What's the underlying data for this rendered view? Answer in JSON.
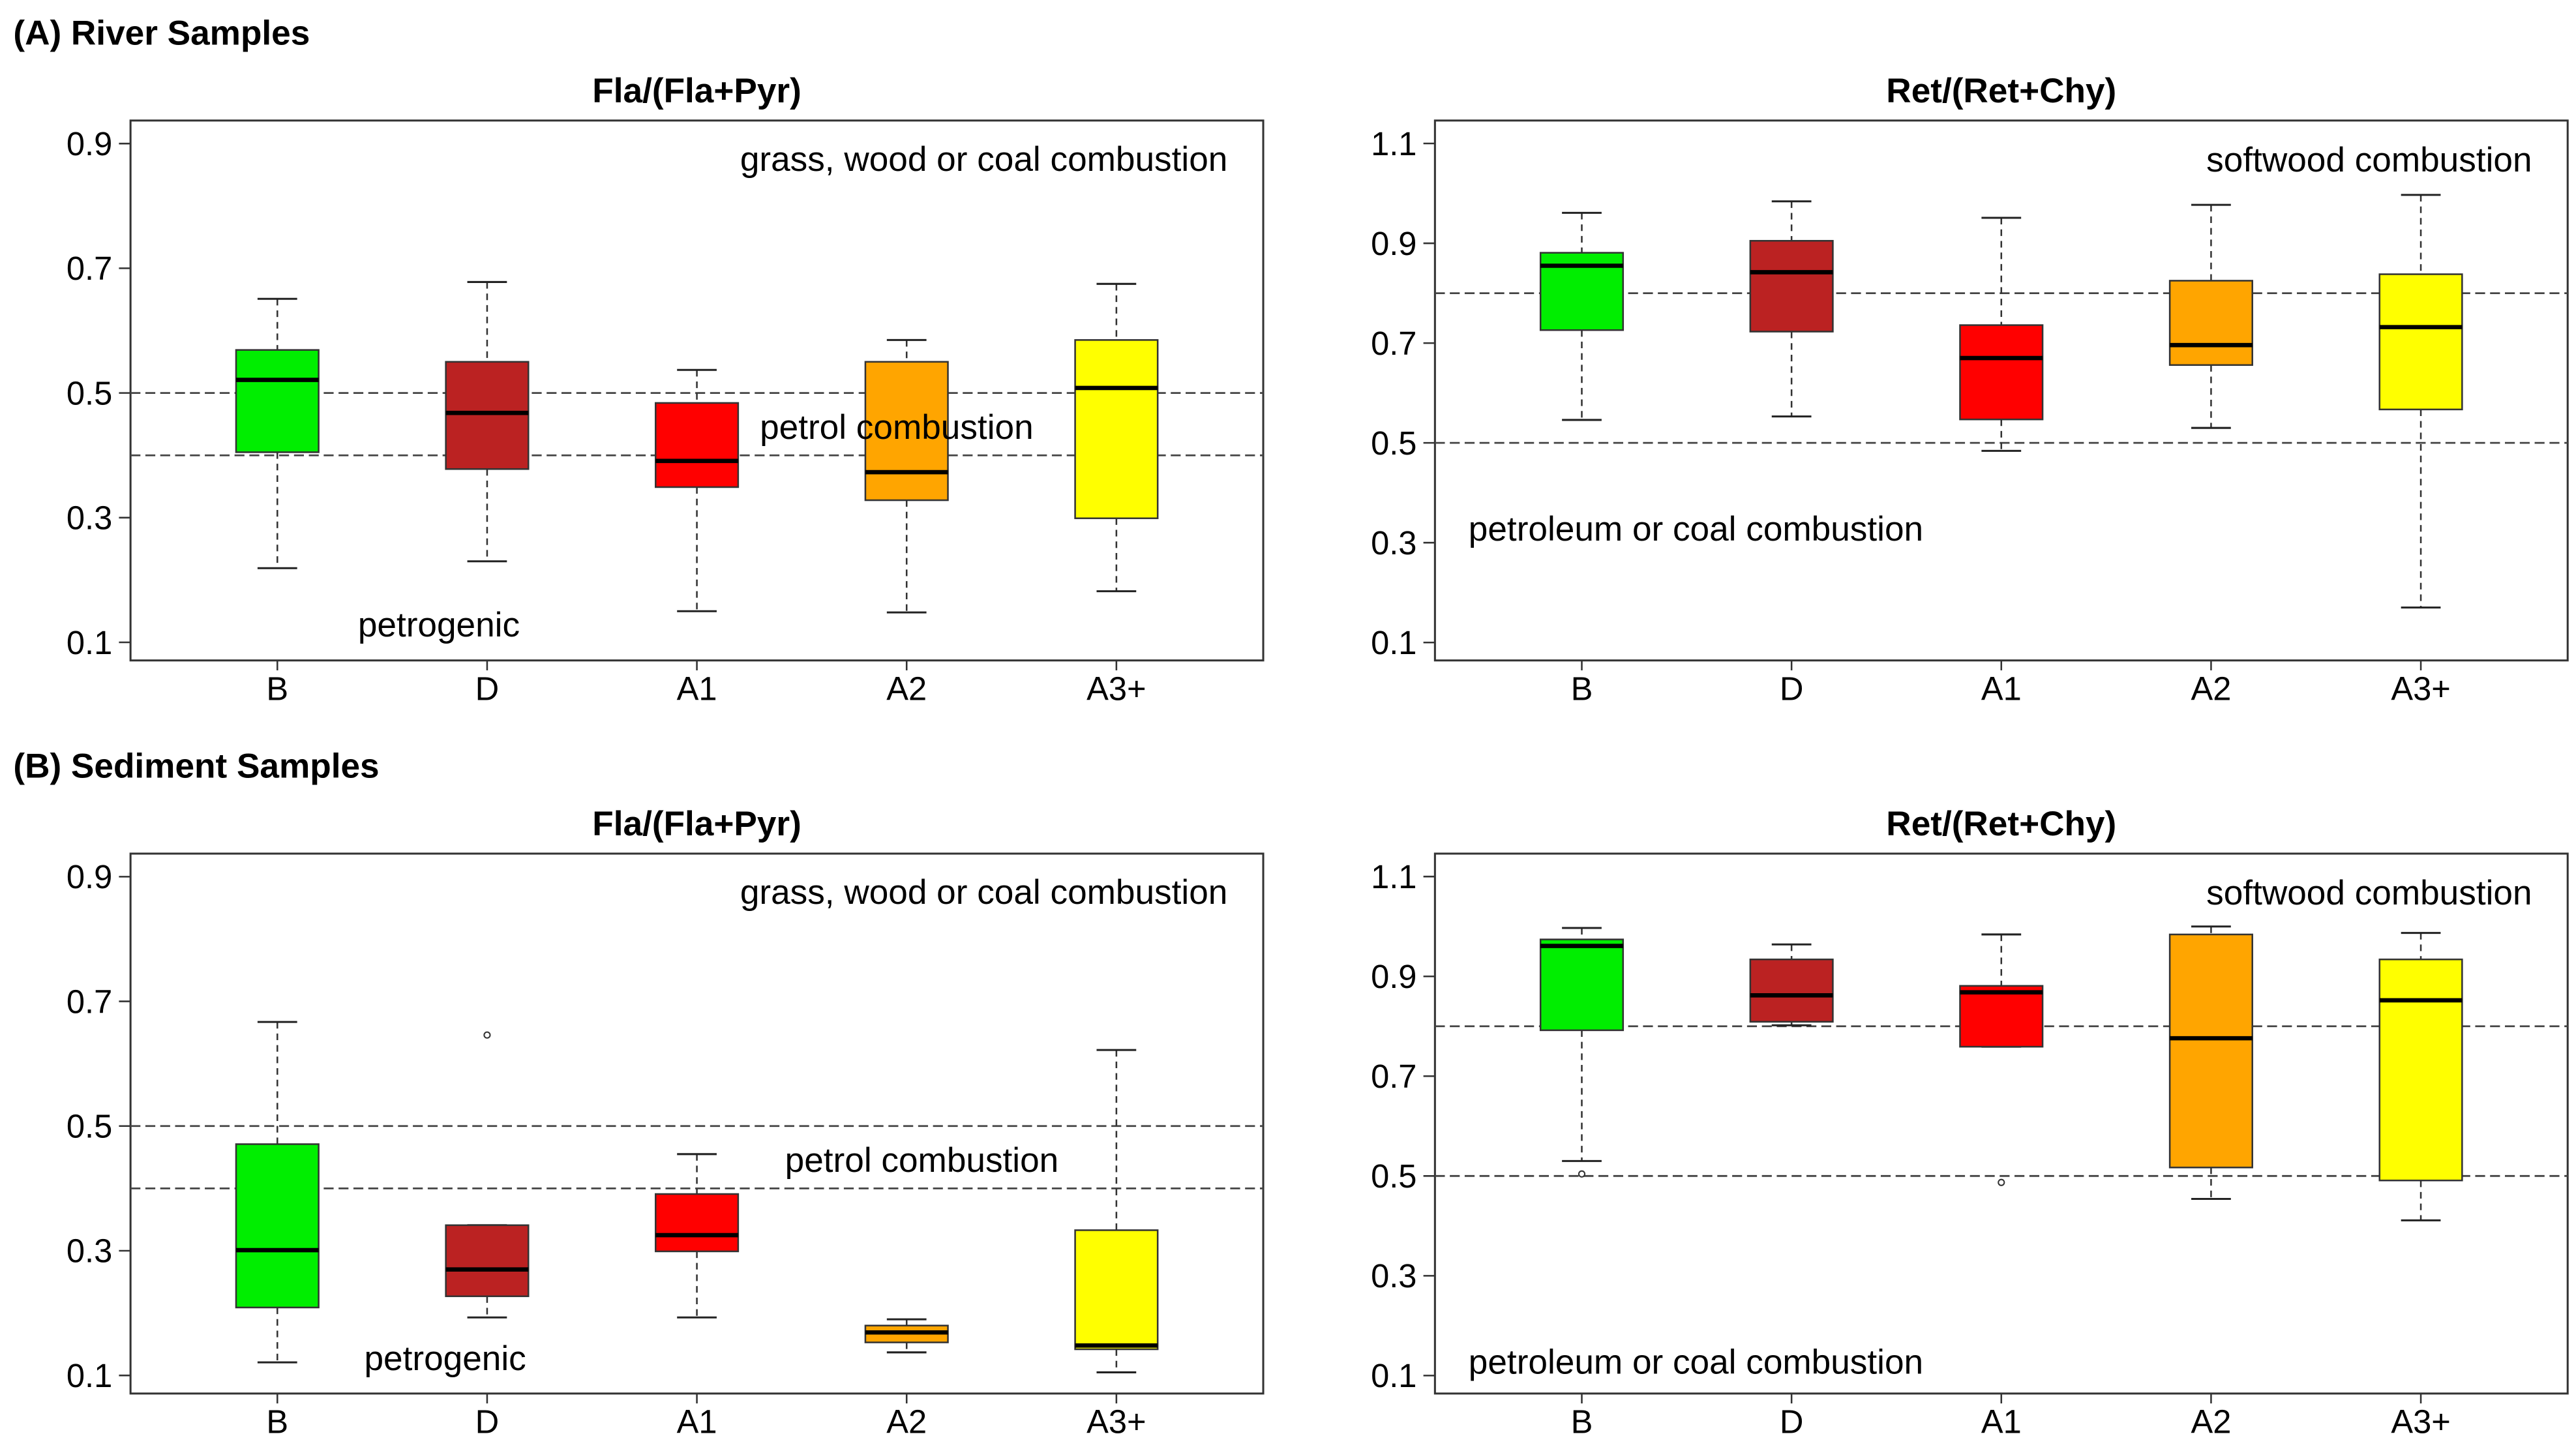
{
  "sections": [
    "(A) River Samples",
    "(B) Sediment Samples"
  ],
  "chart_data": [
    {
      "type": "boxplot",
      "section": 0,
      "column": 0,
      "title": "Fla/(Fla+Pyr)",
      "categories": [
        "B",
        "D",
        "A1",
        "A2",
        "A3+"
      ],
      "yticks": [
        "0.1",
        "0.3",
        "0.5",
        "0.7",
        "0.9"
      ],
      "ylim": [
        0.071,
        0.937
      ],
      "xlim": [
        0.3,
        5.7
      ],
      "reference_lines": [
        0.5,
        0.4
      ],
      "colors": [
        "#00ee00",
        "#bb2222",
        "#ff0000",
        "#ffa500",
        "#ffff00"
      ],
      "boxes": [
        {
          "low": 0.219,
          "q1": 0.405,
          "median": 0.521,
          "q3": 0.569,
          "high": 0.651,
          "outliers": []
        },
        {
          "low": 0.23,
          "q1": 0.378,
          "median": 0.468,
          "q3": 0.55,
          "high": 0.678,
          "outliers": []
        },
        {
          "low": 0.15,
          "q1": 0.349,
          "median": 0.391,
          "q3": 0.484,
          "high": 0.537,
          "outliers": []
        },
        {
          "low": 0.148,
          "q1": 0.328,
          "median": 0.373,
          "q3": 0.55,
          "high": 0.585,
          "outliers": []
        },
        {
          "low": 0.182,
          "q1": 0.299,
          "median": 0.508,
          "q3": 0.585,
          "high": 0.675,
          "outliers": []
        }
      ],
      "annotations": [
        {
          "text": "grass, wood or coal combustion",
          "x": 5.53,
          "y": 0.875,
          "anchor": "end"
        },
        {
          "text": "petrol combustion",
          "x": 3.3,
          "y": 0.445,
          "anchor": "start"
        },
        {
          "text": "petrogenic",
          "x": 1.77,
          "y": 0.128,
          "anchor": "middle"
        }
      ]
    },
    {
      "type": "boxplot",
      "section": 0,
      "column": 1,
      "title": "Ret/(Ret+Chy)",
      "categories": [
        "B",
        "D",
        "A1",
        "A2",
        "A3+"
      ],
      "yticks": [
        "0.1",
        "0.3",
        "0.5",
        "0.7",
        "0.9",
        "1.1"
      ],
      "ylim": [
        0.064,
        1.146
      ],
      "xlim": [
        0.3,
        5.7
      ],
      "reference_lines": [
        0.8,
        0.5
      ],
      "colors": [
        "#00ee00",
        "#bb2222",
        "#ff0000",
        "#ffa500",
        "#ffff00"
      ],
      "boxes": [
        {
          "low": 0.546,
          "q1": 0.726,
          "median": 0.855,
          "q3": 0.881,
          "high": 0.961,
          "outliers": []
        },
        {
          "low": 0.553,
          "q1": 0.723,
          "median": 0.842,
          "q3": 0.905,
          "high": 0.984,
          "outliers": []
        },
        {
          "low": 0.484,
          "q1": 0.547,
          "median": 0.67,
          "q3": 0.736,
          "high": 0.951,
          "outliers": []
        },
        {
          "low": 0.53,
          "q1": 0.656,
          "median": 0.696,
          "q3": 0.825,
          "high": 0.977,
          "outliers": []
        },
        {
          "low": 0.17,
          "q1": 0.567,
          "median": 0.732,
          "q3": 0.838,
          "high": 0.997,
          "outliers": []
        }
      ],
      "annotations": [
        {
          "text": "softwood combustion",
          "x": 5.53,
          "y": 1.067,
          "anchor": "end"
        },
        {
          "text": "petroleum or coal combustion",
          "x": 0.46,
          "y": 0.327,
          "anchor": "start"
        }
      ]
    },
    {
      "type": "boxplot",
      "section": 1,
      "column": 0,
      "title": "Fla/(Fla+Pyr)",
      "categories": [
        "B",
        "D",
        "A1",
        "A2",
        "A3+"
      ],
      "yticks": [
        "0.1",
        "0.3",
        "0.5",
        "0.7",
        "0.9"
      ],
      "ylim": [
        0.071,
        0.937
      ],
      "xlim": [
        0.3,
        5.7
      ],
      "reference_lines": [
        0.5,
        0.4
      ],
      "colors": [
        "#00ee00",
        "#bb2222",
        "#ff0000",
        "#ffa500",
        "#ffff00"
      ],
      "boxes": [
        {
          "low": 0.121,
          "q1": 0.209,
          "median": 0.301,
          "q3": 0.471,
          "high": 0.667,
          "outliers": []
        },
        {
          "low": 0.193,
          "q1": 0.227,
          "median": 0.27,
          "q3": 0.341,
          "high": 0.341,
          "outliers": [
            0.646
          ]
        },
        {
          "low": 0.193,
          "q1": 0.299,
          "median": 0.325,
          "q3": 0.391,
          "high": 0.455,
          "outliers": []
        },
        {
          "low": 0.137,
          "q1": 0.153,
          "median": 0.169,
          "q3": 0.18,
          "high": 0.19,
          "outliers": []
        },
        {
          "low": 0.105,
          "q1": 0.142,
          "median": 0.148,
          "q3": 0.333,
          "high": 0.622,
          "outliers": []
        }
      ],
      "annotations": [
        {
          "text": "grass, wood or coal combustion",
          "x": 5.53,
          "y": 0.875,
          "anchor": "end"
        },
        {
          "text": "petrol combustion",
          "x": 3.42,
          "y": 0.445,
          "anchor": "start"
        },
        {
          "text": "petrogenic",
          "x": 1.8,
          "y": 0.127,
          "anchor": "middle"
        }
      ]
    },
    {
      "type": "boxplot",
      "section": 1,
      "column": 1,
      "title": "Ret/(Ret+Chy)",
      "categories": [
        "B",
        "D",
        "A1",
        "A2",
        "A3+"
      ],
      "yticks": [
        "0.1",
        "0.3",
        "0.5",
        "0.7",
        "0.9",
        "1.1"
      ],
      "ylim": [
        0.064,
        1.146
      ],
      "xlim": [
        0.3,
        5.7
      ],
      "reference_lines": [
        0.8,
        0.5
      ],
      "colors": [
        "#00ee00",
        "#bb2222",
        "#ff0000",
        "#ffa500",
        "#ffff00"
      ],
      "boxes": [
        {
          "low": 0.53,
          "q1": 0.792,
          "median": 0.961,
          "q3": 0.974,
          "high": 0.997,
          "outliers": [
            0.504
          ]
        },
        {
          "low": 0.802,
          "q1": 0.809,
          "median": 0.862,
          "q3": 0.934,
          "high": 0.964,
          "outliers": []
        },
        {
          "low": 0.759,
          "q1": 0.759,
          "median": 0.868,
          "q3": 0.881,
          "high": 0.984,
          "outliers": [
            0.487
          ]
        },
        {
          "low": 0.454,
          "q1": 0.517,
          "median": 0.776,
          "q3": 0.984,
          "high": 1.0,
          "outliers": []
        },
        {
          "low": 0.411,
          "q1": 0.491,
          "median": 0.852,
          "q3": 0.934,
          "high": 0.987,
          "outliers": []
        }
      ],
      "annotations": [
        {
          "text": "softwood combustion",
          "x": 5.53,
          "y": 1.067,
          "anchor": "end"
        },
        {
          "text": "petroleum or coal combustion",
          "x": 0.46,
          "y": 0.127,
          "anchor": "start"
        }
      ]
    }
  ]
}
